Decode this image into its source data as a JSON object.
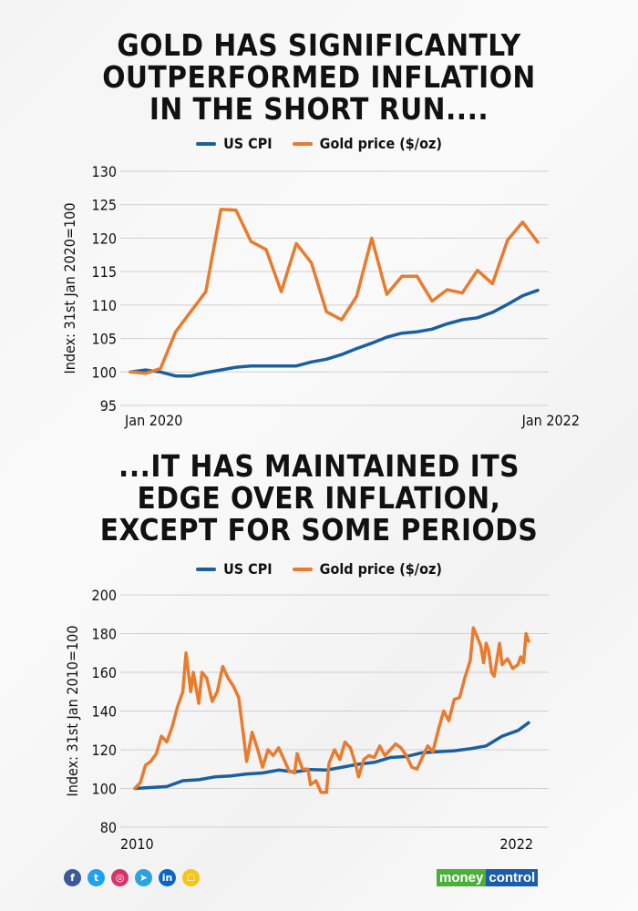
{
  "colors": {
    "cpi": "#1a5fa0",
    "gold": "#ea7a2c",
    "grid": "#cfcfcf"
  },
  "chart1": {
    "title_lines": [
      "GOLD HAS SIGNIFICANTLY",
      "OUTPERFORMED INFLATION",
      "IN THE SHORT RUN...."
    ],
    "legend": [
      "US CPI",
      "Gold price ($/oz)"
    ]
  },
  "chart2": {
    "title_lines": [
      "...IT HAS MAINTAINED ITS",
      "EDGE OVER INFLATION,",
      "EXCEPT FOR SOME PERIODS"
    ],
    "legend": [
      "US CPI",
      "Gold price ($/oz)"
    ]
  },
  "chart_data": [
    {
      "type": "line",
      "ylabel": "Index: 31st Jan 2020=100",
      "ylim": [
        95,
        130
      ],
      "yticks": [
        "95",
        "100",
        "105",
        "110",
        "115",
        "120",
        "125",
        "130"
      ],
      "xtick_labels": [
        "Jan 2020",
        "Jan 2022"
      ],
      "grid": true,
      "legend": "top",
      "x": [
        "Jan 2020",
        "Feb 2020",
        "Mar 2020",
        "Apr 2020",
        "May 2020",
        "Jun 2020",
        "Jul 2020",
        "Aug 2020",
        "Sep 2020",
        "Oct 2020",
        "Nov 2020",
        "Dec 2020",
        "Jan 2021",
        "Feb 2021",
        "Mar 2021",
        "Apr 2021",
        "May 2021",
        "Jun 2021",
        "Jul 2021",
        "Aug 2021",
        "Sep 2021",
        "Oct 2021",
        "Nov 2021",
        "Dec 2021",
        "Jan 2022",
        "Feb 2022",
        "Mar 2022",
        "Apr 2022"
      ],
      "series": [
        {
          "name": "US CPI",
          "values": [
            100,
            100.3,
            100,
            99.4,
            99.4,
            99.9,
            100.3,
            100.7,
            100.9,
            100.9,
            100.9,
            100.9,
            101.5,
            101.9,
            102.6,
            103.5,
            104.3,
            105.2,
            105.8,
            106,
            106.4,
            107.2,
            107.8,
            108.1,
            108.9,
            110.1,
            111.4,
            112.2
          ]
        },
        {
          "name": "Gold price ($/oz)",
          "values": [
            100,
            99.8,
            100.5,
            106,
            109,
            112,
            124.3,
            124.2,
            119.5,
            118.3,
            112,
            119.2,
            116.3,
            109,
            107.8,
            111.3,
            120,
            111.6,
            114.3,
            114.3,
            110.6,
            112.3,
            111.8,
            115.2,
            113.2,
            119.7,
            122.4,
            119.4
          ]
        }
      ]
    },
    {
      "type": "line",
      "ylabel": "Index:  31st Jan 2010=100",
      "ylim": [
        80,
        200
      ],
      "yticks": [
        "80",
        "100",
        "120",
        "140",
        "160",
        "180",
        "200"
      ],
      "xtick_labels": [
        "2010",
        "2022"
      ],
      "grid": true,
      "legend": "top",
      "series": [
        {
          "name": "US CPI",
          "x": [
            2010,
            2011,
            2011.5,
            2012,
            2012.5,
            2013,
            2013.5,
            2014,
            2014.5,
            2015,
            2015.5,
            2016,
            2016.5,
            2017,
            2017.5,
            2018,
            2018.5,
            2019,
            2019.5,
            2020,
            2020.5,
            2021,
            2021.5,
            2022,
            2022.33
          ],
          "values": [
            100,
            101,
            104,
            104.5,
            106,
            106.5,
            107.5,
            108,
            109.5,
            108.5,
            109.8,
            109.5,
            111,
            112.5,
            113.5,
            116,
            116.5,
            118.5,
            119,
            119.5,
            120.5,
            122,
            127,
            130,
            134
          ]
        },
        {
          "name": "Gold price ($/oz)",
          "x": [
            2010,
            2010.17,
            2010.33,
            2010.5,
            2010.67,
            2010.83,
            2011,
            2011.17,
            2011.33,
            2011.5,
            2011.6,
            2011.75,
            2011.83,
            2012,
            2012.1,
            2012.25,
            2012.42,
            2012.58,
            2012.75,
            2012.92,
            2013.08,
            2013.25,
            2013.42,
            2013.5,
            2013.67,
            2013.83,
            2014,
            2014.17,
            2014.33,
            2014.5,
            2014.67,
            2014.83,
            2015,
            2015.08,
            2015.25,
            2015.42,
            2015.5,
            2015.67,
            2015.83,
            2016,
            2016.08,
            2016.25,
            2016.42,
            2016.58,
            2016.75,
            2016.92,
            2017,
            2017.17,
            2017.33,
            2017.5,
            2017.67,
            2017.83,
            2018,
            2018.17,
            2018.33,
            2018.5,
            2018.67,
            2018.83,
            2019,
            2019.17,
            2019.33,
            2019.5,
            2019.67,
            2019.83,
            2020,
            2020.17,
            2020.33,
            2020.5,
            2020.6,
            2020.75,
            2020.83,
            2020.92,
            2021,
            2021.08,
            2021.17,
            2021.25,
            2021.42,
            2021.5,
            2021.67,
            2021.83,
            2022,
            2022.08,
            2022.17,
            2022.25,
            2022.33
          ],
          "values": [
            100,
            103,
            112,
            114,
            118,
            127,
            124,
            132,
            142,
            150,
            170,
            150,
            160,
            144,
            160,
            157,
            145,
            150,
            163,
            157,
            153,
            147,
            125,
            114,
            129,
            121,
            111,
            120,
            117,
            121,
            115,
            109,
            108,
            118,
            110,
            110,
            102,
            104,
            98,
            98,
            113,
            120,
            115,
            124,
            121,
            112,
            106,
            115,
            117,
            116,
            122,
            117,
            120,
            123,
            121,
            117,
            111,
            110,
            116,
            122,
            119,
            130,
            140,
            135,
            146,
            147,
            157,
            166,
            183,
            177,
            174,
            165,
            175,
            171,
            160,
            158,
            175,
            164,
            167,
            162,
            164,
            168,
            165,
            180,
            176
          ]
        }
      ]
    }
  ],
  "footer": {
    "social_icons": [
      "facebook-icon",
      "twitter-icon",
      "instagram-icon",
      "telegram-icon",
      "linkedin-icon",
      "snapchat-icon"
    ],
    "social_glyphs": [
      "f",
      "t",
      "◎",
      "➤",
      "in",
      "☖"
    ],
    "logo_part1": "money",
    "logo_part2": "control"
  }
}
